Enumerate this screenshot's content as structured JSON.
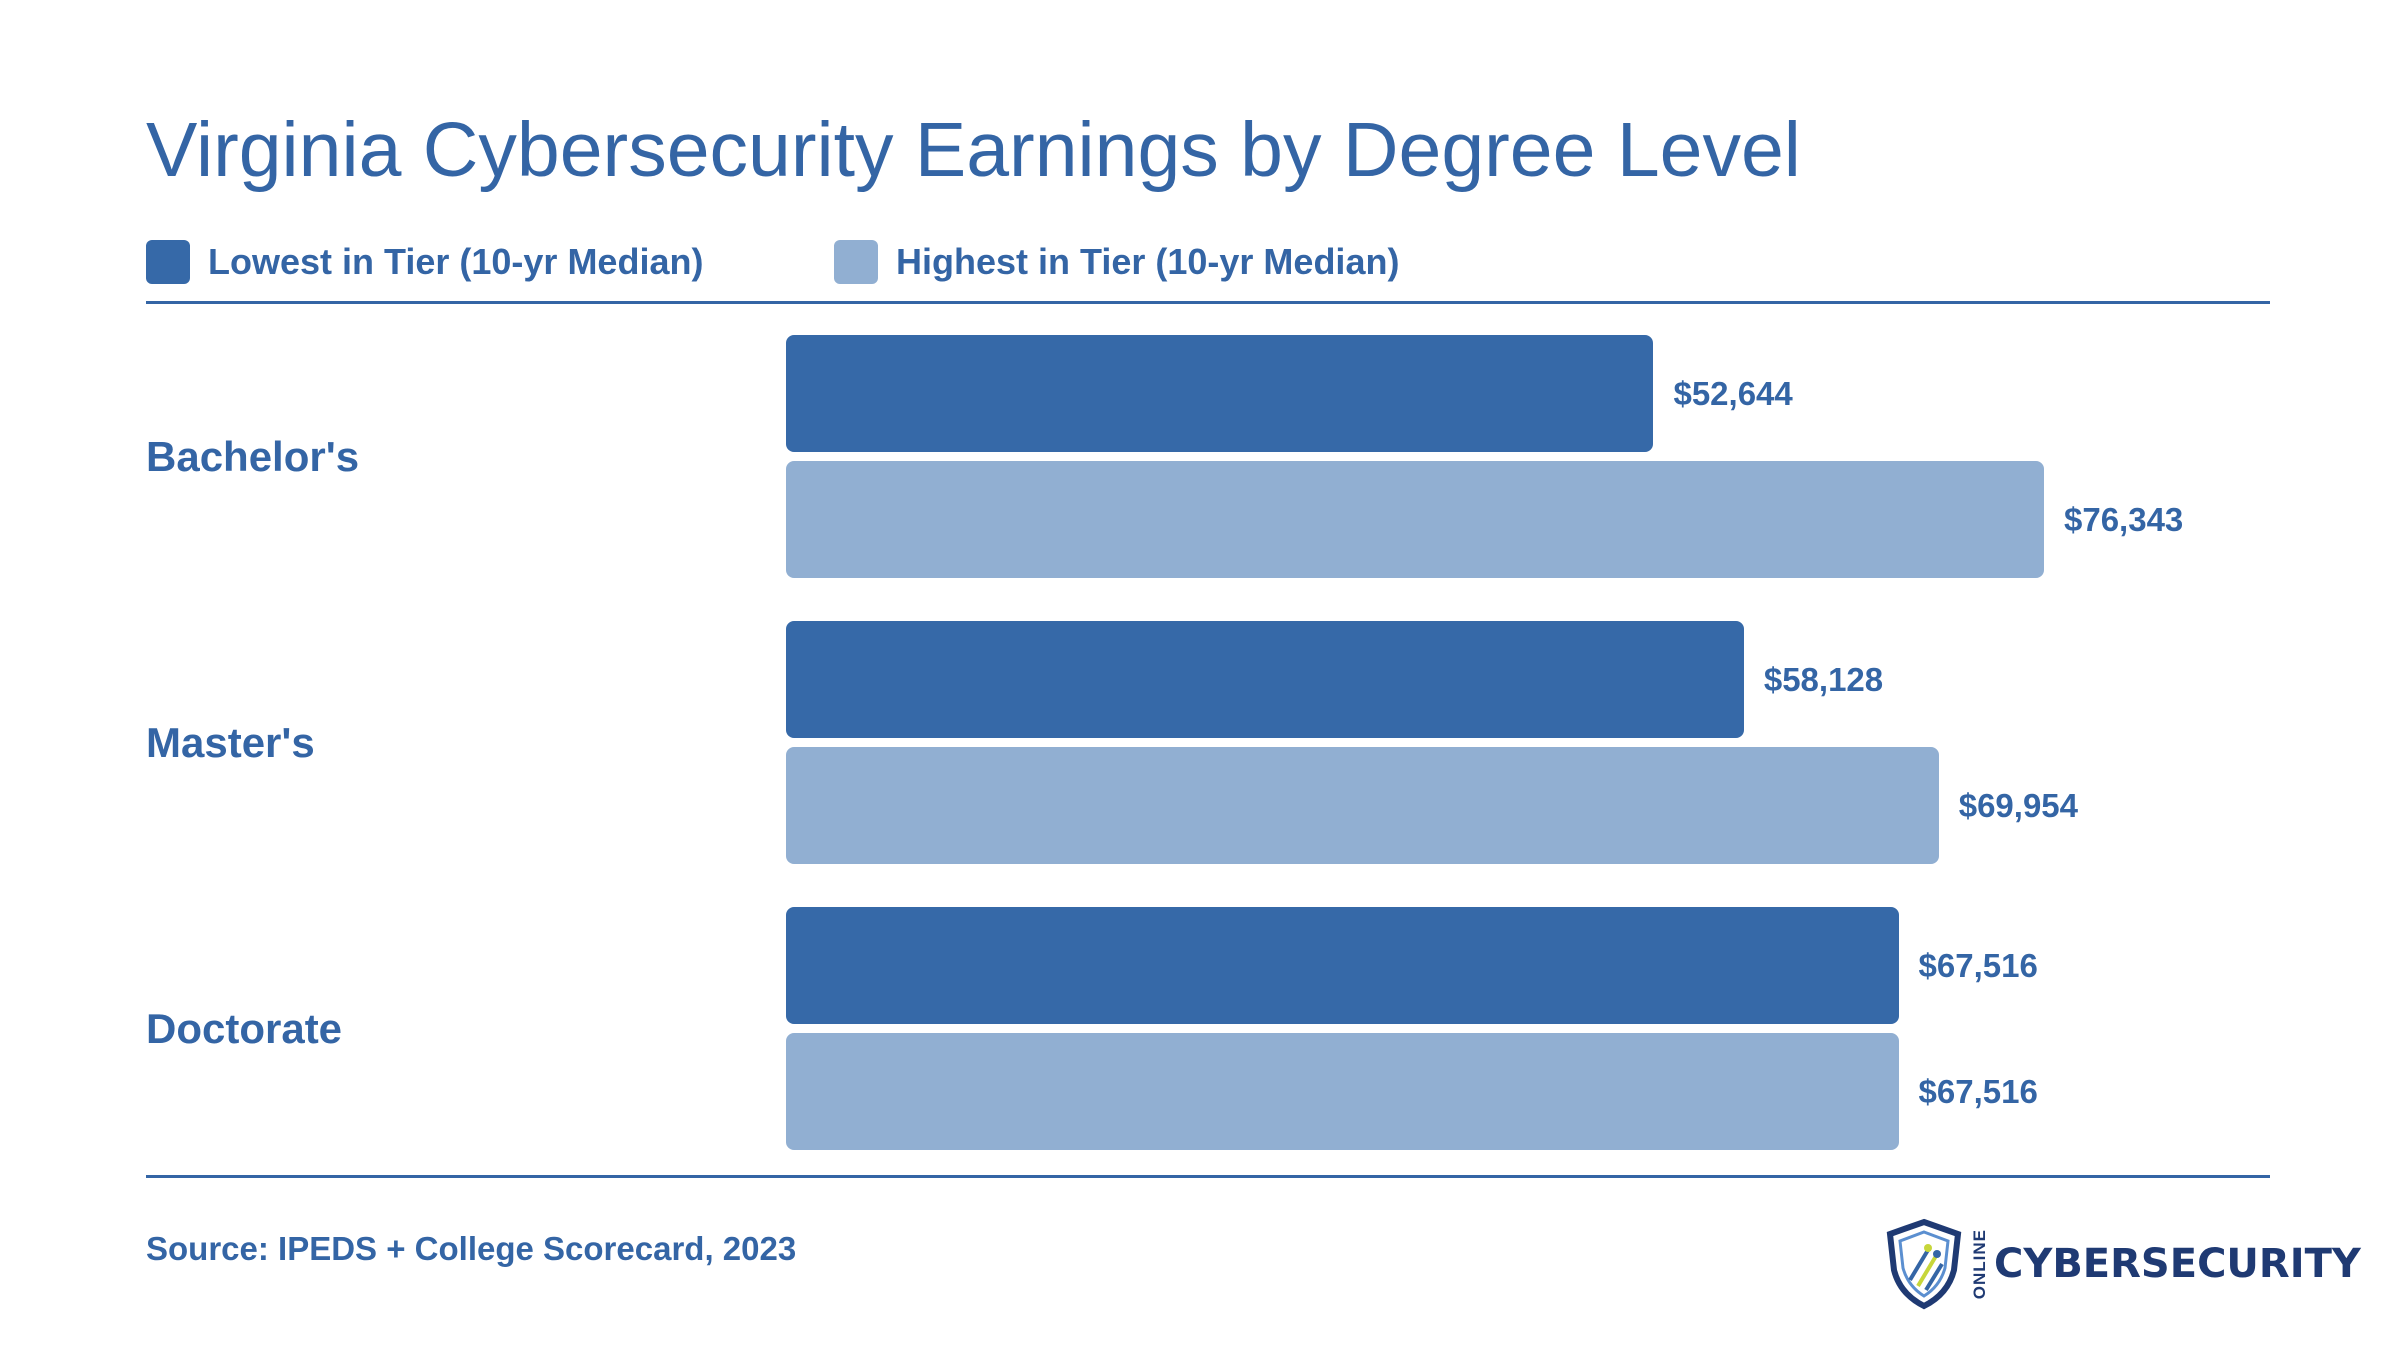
{
  "colors": {
    "lowest": "#3669a8",
    "highest": "#91afd2",
    "text": "#3465a5",
    "logo": "#1f3a73"
  },
  "chart_data": {
    "type": "bar",
    "orientation": "horizontal",
    "title": "Virginia Cybersecurity Earnings by Degree Level",
    "categories": [
      "Bachelor's",
      "Master's",
      "Doctorate"
    ],
    "series": [
      {
        "name": "Lowest in Tier (10-yr Median)",
        "values": [
          52644,
          58128,
          67516
        ],
        "labels": [
          "$52,644",
          "$58,128",
          "$67,516"
        ]
      },
      {
        "name": "Highest in Tier (10-yr Median)",
        "values": [
          76343,
          69954,
          67516
        ],
        "labels": [
          "$76,343",
          "$69,954",
          "$67,516"
        ]
      }
    ],
    "xlim": [
      0,
      76343
    ],
    "grid": false,
    "legend": "top-left",
    "source": "Source: IPEDS + College Scorecard, 2023"
  },
  "logo": {
    "small_text": "ONLINE",
    "text": "CYBERSECURITY",
    "icon": "shield-circuit-icon"
  }
}
